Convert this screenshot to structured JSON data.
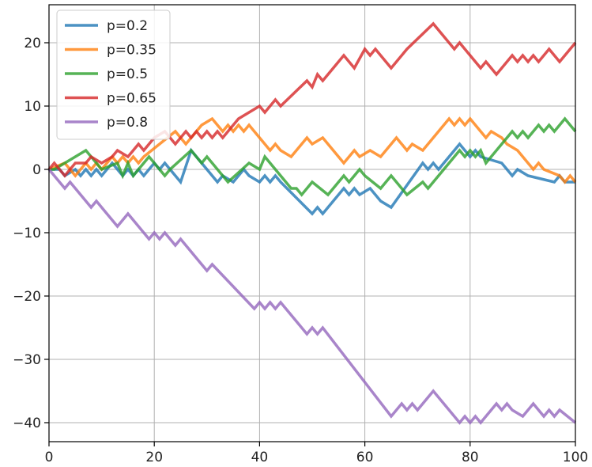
{
  "chart_data": {
    "type": "line",
    "title": "",
    "xlabel": "",
    "ylabel": "",
    "xlim": [
      0,
      100
    ],
    "ylim": [
      -43,
      26
    ],
    "xticks": [
      0,
      20,
      40,
      60,
      80,
      100
    ],
    "yticks": [
      -40,
      -30,
      -20,
      -10,
      0,
      10,
      20
    ],
    "grid": true,
    "legend_position": "top-left",
    "series": [
      {
        "name": "p=0.2",
        "color": "#1f77b4",
        "x": [
          0,
          2,
          3,
          5,
          6,
          7,
          8,
          9,
          10,
          12,
          14,
          15,
          16,
          17,
          18,
          19,
          20,
          21,
          22,
          25,
          27,
          32,
          33,
          35,
          37,
          38,
          40,
          41,
          42,
          43,
          44,
          50,
          51,
          52,
          56,
          57,
          58,
          59,
          61,
          62,
          63,
          65,
          71,
          72,
          73,
          74,
          78,
          80,
          81,
          82,
          86,
          87,
          88,
          89,
          91,
          96,
          97,
          98,
          100
        ],
        "values": [
          0,
          0,
          -1,
          0,
          -1,
          0,
          -1,
          0,
          -1,
          1,
          -1,
          0,
          -1,
          0,
          -1,
          0,
          1,
          0,
          1,
          -2,
          3,
          -2,
          -1,
          -2,
          0,
          -1,
          -2,
          -1,
          -2,
          -1,
          -2,
          -7,
          -6,
          -7,
          -3,
          -4,
          -3,
          -4,
          -3,
          -4,
          -5,
          -6,
          1,
          0,
          1,
          0,
          4,
          2,
          3,
          2,
          1,
          0,
          -1,
          0,
          -1,
          -2,
          -1,
          -2,
          -2
        ]
      },
      {
        "name": "p=0.35",
        "color": "#ff7f0e",
        "x": [
          0,
          3,
          5,
          7,
          8,
          9,
          10,
          12,
          13,
          14,
          15,
          16,
          17,
          18,
          24,
          26,
          27,
          28,
          29,
          31,
          32,
          33,
          34,
          35,
          36,
          37,
          38,
          42,
          43,
          44,
          46,
          47,
          48,
          49,
          50,
          52,
          53,
          54,
          55,
          56,
          57,
          58,
          59,
          61,
          63,
          64,
          66,
          67,
          68,
          69,
          71,
          72,
          76,
          77,
          78,
          79,
          80,
          83,
          84,
          86,
          87,
          89,
          91,
          92,
          93,
          94,
          97,
          98,
          99,
          100
        ],
        "values": [
          0,
          1,
          -1,
          1,
          0,
          1,
          0,
          2,
          1,
          2,
          1,
          2,
          1,
          2,
          6,
          4,
          5,
          6,
          7,
          8,
          7,
          6,
          7,
          6,
          7,
          6,
          7,
          3,
          4,
          3,
          2,
          3,
          4,
          5,
          4,
          5,
          4,
          3,
          2,
          1,
          2,
          3,
          2,
          3,
          2,
          3,
          5,
          4,
          3,
          4,
          3,
          4,
          8,
          7,
          8,
          7,
          8,
          5,
          6,
          5,
          4,
          3,
          1,
          0,
          1,
          0,
          -1,
          -2,
          -1,
          -2
        ]
      },
      {
        "name": "p=0.5",
        "color": "#2ca02c",
        "x": [
          0,
          1,
          3,
          7,
          10,
          13,
          14,
          15,
          16,
          19,
          20,
          21,
          22,
          23,
          27,
          29,
          30,
          31,
          34,
          38,
          40,
          41,
          45,
          46,
          47,
          48,
          50,
          53,
          54,
          56,
          57,
          59,
          60,
          63,
          65,
          66,
          67,
          68,
          71,
          72,
          73,
          74,
          75,
          76,
          77,
          78,
          79,
          80,
          81,
          82,
          83,
          84,
          85,
          86,
          87,
          88,
          89,
          90,
          91,
          92,
          93,
          94,
          95,
          96,
          97,
          98,
          100
        ],
        "values": [
          0,
          0,
          1,
          3,
          0,
          1,
          -1,
          1,
          -1,
          2,
          1,
          0,
          -1,
          0,
          3,
          1,
          2,
          1,
          -2,
          1,
          0,
          2,
          -2,
          -3,
          -3,
          -4,
          -2,
          -4,
          -3,
          -1,
          -2,
          0,
          -1,
          -3,
          -1,
          -2,
          -3,
          -4,
          -2,
          -3,
          -2,
          -1,
          0,
          1,
          2,
          3,
          2,
          3,
          2,
          3,
          1,
          2,
          3,
          4,
          5,
          6,
          5,
          6,
          5,
          6,
          7,
          6,
          7,
          6,
          7,
          8,
          6
        ]
      },
      {
        "name": "p=0.65",
        "color": "#d62728",
        "x": [
          0,
          1,
          3,
          5,
          7,
          8,
          10,
          12,
          13,
          15,
          16,
          17,
          18,
          19,
          20,
          22,
          24,
          25,
          26,
          27,
          28,
          29,
          30,
          31,
          32,
          33,
          34,
          36,
          40,
          41,
          42,
          43,
          44,
          49,
          50,
          51,
          52,
          56,
          57,
          58,
          60,
          61,
          62,
          63,
          64,
          65,
          66,
          68,
          73,
          74,
          77,
          78,
          79,
          81,
          82,
          83,
          84,
          85,
          86,
          88,
          89,
          90,
          91,
          92,
          93,
          94,
          95,
          96,
          97,
          100
        ],
        "values": [
          0,
          1,
          -1,
          1,
          1,
          2,
          1,
          2,
          3,
          2,
          3,
          4,
          3,
          4,
          5,
          6,
          4,
          5,
          6,
          5,
          6,
          5,
          6,
          5,
          6,
          5,
          6,
          8,
          10,
          9,
          10,
          11,
          10,
          14,
          13,
          15,
          14,
          18,
          17,
          16,
          19,
          18,
          19,
          18,
          17,
          16,
          17,
          19,
          23,
          22,
          19,
          20,
          19,
          17,
          16,
          17,
          16,
          15,
          16,
          18,
          17,
          18,
          17,
          18,
          17,
          18,
          19,
          18,
          17,
          20
        ]
      },
      {
        "name": "p=0.8",
        "color": "#9467bd",
        "x": [
          0,
          1,
          3,
          4,
          6,
          8,
          9,
          13,
          15,
          19,
          20,
          21,
          22,
          24,
          25,
          30,
          31,
          39,
          40,
          41,
          42,
          43,
          44,
          49,
          50,
          51,
          52,
          65,
          67,
          68,
          69,
          70,
          73,
          78,
          79,
          80,
          81,
          82,
          85,
          86,
          87,
          88,
          90,
          92,
          93,
          94,
          95,
          96,
          97,
          100
        ],
        "values": [
          0,
          -1,
          -3,
          -2,
          -4,
          -6,
          -5,
          -9,
          -7,
          -11,
          -10,
          -11,
          -10,
          -12,
          -11,
          -16,
          -15,
          -22,
          -21,
          -22,
          -21,
          -22,
          -21,
          -26,
          -25,
          -26,
          -25,
          -39,
          -37,
          -38,
          -37,
          -38,
          -35,
          -40,
          -39,
          -40,
          -39,
          -40,
          -37,
          -38,
          -37,
          -38,
          -39,
          -37,
          -38,
          -39,
          -38,
          -39,
          -38,
          -40
        ]
      }
    ]
  }
}
